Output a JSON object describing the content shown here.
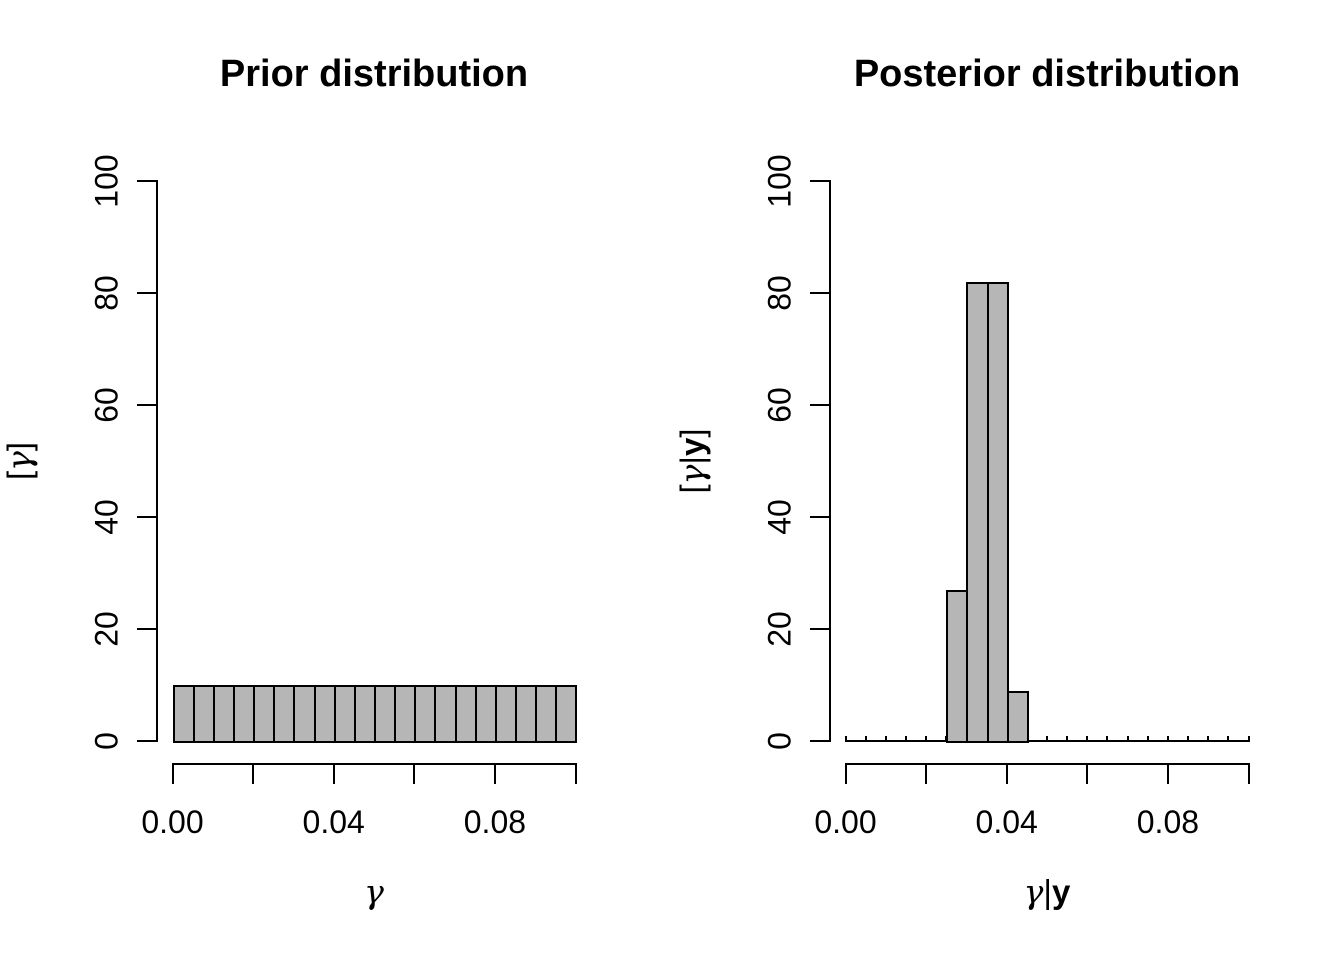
{
  "figure": {
    "background": "#ffffff",
    "bar_fill": "#b6b6b6",
    "bar_border": "#000000",
    "text_color": "#000000"
  },
  "chart_data": [
    {
      "type": "bar",
      "title": "Prior distribution",
      "xlabel": "γ",
      "ylabel": "[γ]",
      "xlabel_parts": [
        {
          "text": "γ",
          "style": "symbol"
        }
      ],
      "ylabel_parts": [
        {
          "text": "[",
          "style": "plain"
        },
        {
          "text": "γ",
          "style": "symbol"
        },
        {
          "text": "]",
          "style": "plain"
        }
      ],
      "bin_start": 0.0,
      "bin_width": 0.005,
      "values": [
        10,
        10,
        10,
        10,
        10,
        10,
        10,
        10,
        10,
        10,
        10,
        10,
        10,
        10,
        10,
        10,
        10,
        10,
        10,
        10
      ],
      "xlim": [
        0.0,
        0.1
      ],
      "ylim": [
        0,
        100
      ],
      "x_ticks": [
        0.0,
        0.02,
        0.04,
        0.06,
        0.08,
        0.1
      ],
      "x_tick_labels": [
        "0.00",
        "",
        "0.04",
        "",
        "0.08",
        ""
      ],
      "y_ticks": [
        0,
        20,
        40,
        60,
        80,
        100
      ],
      "y_tick_labels": [
        "0",
        "20",
        "40",
        "60",
        "80",
        "100"
      ],
      "grid": false,
      "legend": null
    },
    {
      "type": "bar",
      "title": "Posterior distribution",
      "xlabel": "γ|y",
      "ylabel": "[γ|y]",
      "xlabel_parts": [
        {
          "text": "γ",
          "style": "symbol"
        },
        {
          "text": "|",
          "style": "plain"
        },
        {
          "text": "y",
          "style": "bold"
        }
      ],
      "ylabel_parts": [
        {
          "text": "[",
          "style": "plain"
        },
        {
          "text": "γ",
          "style": "symbol"
        },
        {
          "text": "|",
          "style": "plain"
        },
        {
          "text": "y",
          "style": "bold"
        },
        {
          "text": "]",
          "style": "plain"
        }
      ],
      "bin_start": 0.0,
      "bin_width": 0.005,
      "values": [
        0,
        0,
        0,
        0,
        0,
        27,
        82,
        82,
        9,
        0,
        0,
        0,
        0,
        0,
        0,
        0,
        0,
        0,
        0,
        0
      ],
      "xlim": [
        0.0,
        0.1
      ],
      "ylim": [
        0,
        100
      ],
      "x_ticks": [
        0.0,
        0.02,
        0.04,
        0.06,
        0.08,
        0.1
      ],
      "x_tick_labels": [
        "0.00",
        "",
        "0.04",
        "",
        "0.08",
        ""
      ],
      "y_ticks": [
        0,
        20,
        40,
        60,
        80,
        100
      ],
      "y_tick_labels": [
        "0",
        "20",
        "40",
        "60",
        "80",
        "100"
      ],
      "grid": false,
      "legend": null
    }
  ]
}
